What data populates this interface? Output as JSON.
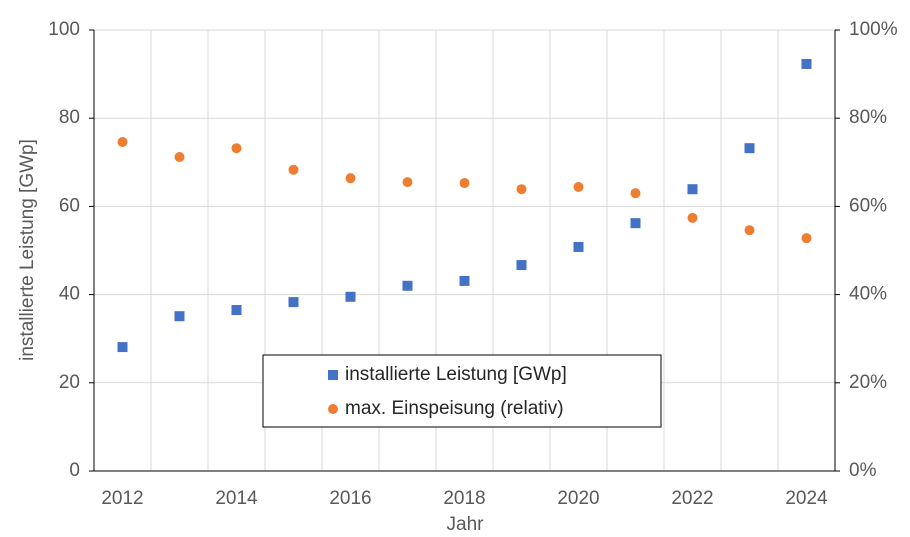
{
  "chart_data": {
    "type": "scatter",
    "categories": [
      "2012",
      null,
      "2014",
      null,
      "2016",
      null,
      "2018",
      null,
      "2020",
      null,
      "2022",
      null,
      "2024"
    ],
    "xlabel": "Jahr",
    "ylabel": "installierte Leistung [GWp]",
    "ylim": [
      0,
      100
    ],
    "yticks": [
      0,
      20,
      40,
      60,
      80,
      100
    ],
    "y2lim": [
      0,
      100
    ],
    "y2ticks": [
      {
        "value": 0,
        "label": "0%"
      },
      {
        "value": 20,
        "label": "20%"
      },
      {
        "value": 40,
        "label": "40%"
      },
      {
        "value": 60,
        "label": "60%"
      },
      {
        "value": 80,
        "label": "80%"
      },
      {
        "value": 100,
        "label": "100%"
      }
    ],
    "grid": true,
    "legend": "bottom-center",
    "series": [
      {
        "name": "installierte Leistung [GWp]",
        "color": "#4472c4",
        "marker": "square",
        "values": [
          28.1,
          35.1,
          36.5,
          38.3,
          39.5,
          42,
          43.1,
          46.7,
          50.8,
          56.2,
          63.9,
          73.2,
          92.3
        ]
      },
      {
        "name": "max. Einspeisung (relativ)",
        "color": "#ed7d31",
        "marker": "circle",
        "axis": "y2",
        "values": [
          74.6,
          71.2,
          73.2,
          68.3,
          66.4,
          65.5,
          65.3,
          63.9,
          64.4,
          63,
          57.4,
          54.6,
          52.8
        ]
      }
    ]
  }
}
